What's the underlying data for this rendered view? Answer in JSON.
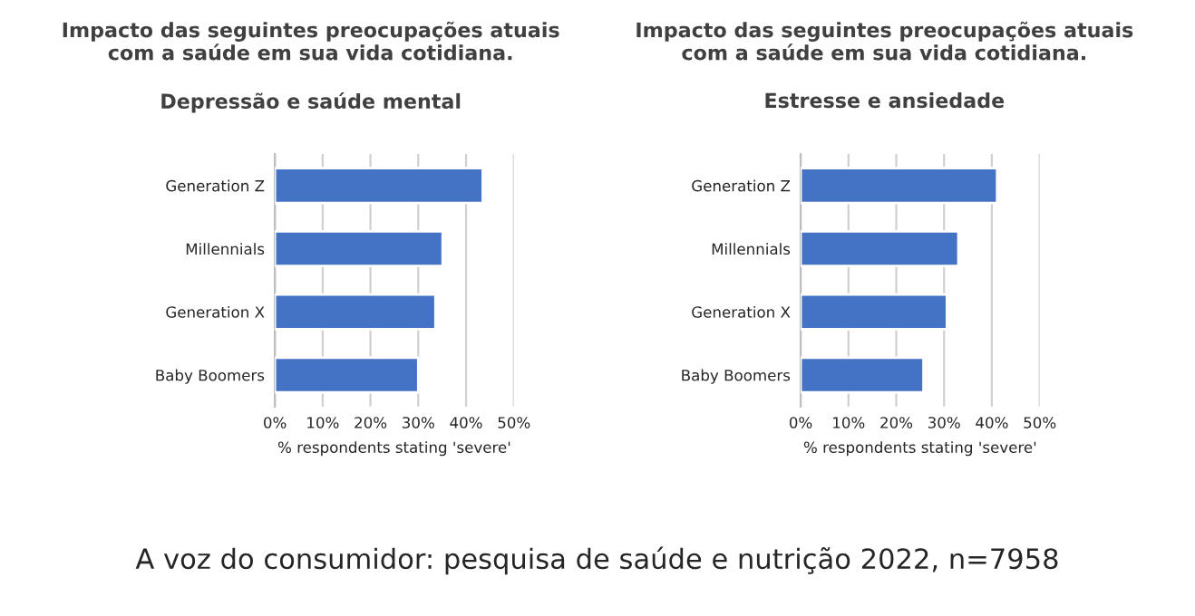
{
  "chart_data": [
    {
      "type": "bar",
      "orientation": "horizontal",
      "title": "Impacto das seguintes preocupações atuais\ncom a saúde em sua vida cotidiana.",
      "subtitle": "Depressão e saúde mental",
      "xlabel": "% respondents stating 'severe'",
      "categories": [
        "Generation Z",
        "Millennials",
        "Generation X",
        "Baby Boomers"
      ],
      "values": [
        43.5,
        35.1,
        33.6,
        30.0
      ],
      "color": "#4472c4",
      "xlim": [
        0,
        50
      ],
      "xticks": [
        {
          "value": 0,
          "label": "0%"
        },
        {
          "value": 10,
          "label": "10%"
        },
        {
          "value": 20,
          "label": "20%"
        },
        {
          "value": 30,
          "label": "30%"
        },
        {
          "value": 40,
          "label": "40%"
        },
        {
          "value": 50,
          "label": "50%"
        }
      ],
      "grid": "x",
      "annotations": [
        "A voz do consumidor: pesquisa de saúde e nutrição 2022, n=7958"
      ]
    },
    {
      "type": "bar",
      "orientation": "horizontal",
      "title": "Impacto das seguintes preocupações atuais\ncom a saúde em sua vida cotidiana.",
      "subtitle": "Estresse e ansiedade",
      "xlabel": "% respondents stating 'severe'",
      "categories": [
        "Generation Z",
        "Millennials",
        "Generation X",
        "Baby Boomers"
      ],
      "values": [
        41.1,
        33.0,
        30.6,
        25.7
      ],
      "color": "#4472c4",
      "xlim": [
        0,
        50
      ],
      "xticks": [
        {
          "value": 0,
          "label": "0%"
        },
        {
          "value": 10,
          "label": "10%"
        },
        {
          "value": 20,
          "label": "20%"
        },
        {
          "value": 30,
          "label": "30%"
        },
        {
          "value": 40,
          "label": "40%"
        },
        {
          "value": 50,
          "label": "50%"
        }
      ],
      "grid": "x"
    }
  ]
}
